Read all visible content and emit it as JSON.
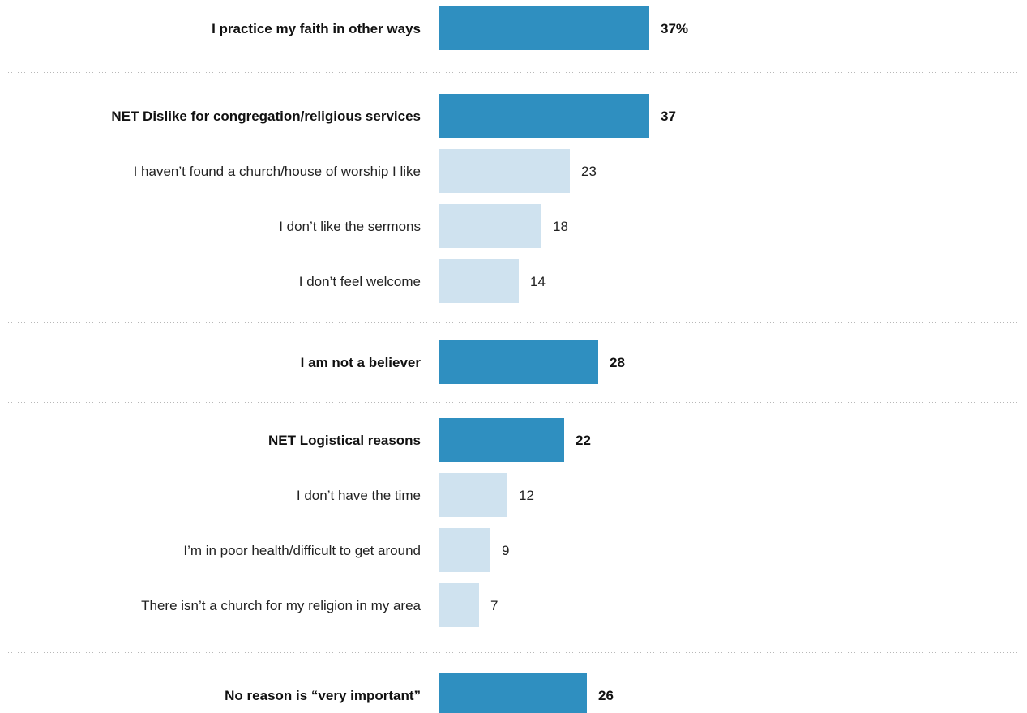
{
  "chart_data": {
    "type": "bar",
    "orientation": "horizontal",
    "unit": "%",
    "xlim": [
      0,
      100
    ],
    "colors": {
      "net": "#2f8fc0",
      "sub": "#cfe2ef"
    },
    "groups": [
      {
        "rows": [
          {
            "label": "I practice my faith in other ways",
            "value": 37,
            "display": "37%",
            "level": "net"
          }
        ]
      },
      {
        "rows": [
          {
            "label": "NET Dislike for congregation/religious services",
            "value": 37,
            "display": "37",
            "level": "net"
          },
          {
            "label": "I haven’t found a church/house of worship I like",
            "value": 23,
            "display": "23",
            "level": "sub"
          },
          {
            "label": "I don’t like the sermons",
            "value": 18,
            "display": "18",
            "level": "sub"
          },
          {
            "label": "I don’t feel welcome",
            "value": 14,
            "display": "14",
            "level": "sub"
          }
        ]
      },
      {
        "rows": [
          {
            "label": "I am not a believer",
            "value": 28,
            "display": "28",
            "level": "net"
          }
        ]
      },
      {
        "rows": [
          {
            "label": "NET Logistical reasons",
            "value": 22,
            "display": "22",
            "level": "net"
          },
          {
            "label": "I don’t have the time",
            "value": 12,
            "display": "12",
            "level": "sub"
          },
          {
            "label": "I’m in poor health/difficult to get around",
            "value": 9,
            "display": "9",
            "level": "sub"
          },
          {
            "label": "There isn’t a church for my religion in my area",
            "value": 7,
            "display": "7",
            "level": "sub"
          }
        ]
      },
      {
        "rows": [
          {
            "label": "No reason is “very important”",
            "value": 26,
            "display": "26",
            "level": "net"
          }
        ]
      }
    ]
  }
}
